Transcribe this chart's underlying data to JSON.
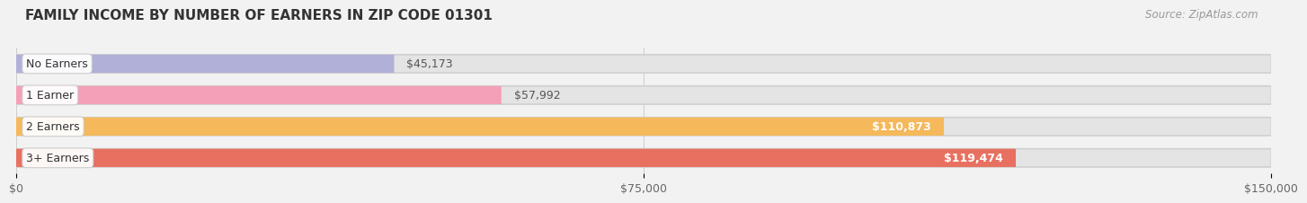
{
  "title": "FAMILY INCOME BY NUMBER OF EARNERS IN ZIP CODE 01301",
  "source": "Source: ZipAtlas.com",
  "categories": [
    "No Earners",
    "1 Earner",
    "2 Earners",
    "3+ Earners"
  ],
  "values": [
    45173,
    57992,
    110873,
    119474
  ],
  "bar_colors": [
    "#b0b0d8",
    "#f4a0b8",
    "#f5b85a",
    "#e87060"
  ],
  "label_colors": [
    "#555555",
    "#555555",
    "#ffffff",
    "#ffffff"
  ],
  "value_labels": [
    "$45,173",
    "$57,992",
    "$110,873",
    "$119,474"
  ],
  "xmax": 150000,
  "xticks": [
    0,
    75000,
    150000
  ],
  "xtick_labels": [
    "$0",
    "$75,000",
    "$150,000"
  ],
  "background_color": "#f2f2f2",
  "bar_background_color": "#e4e4e4",
  "title_fontsize": 11,
  "source_fontsize": 8.5,
  "label_fontsize": 9,
  "value_fontsize": 9,
  "tick_fontsize": 9
}
